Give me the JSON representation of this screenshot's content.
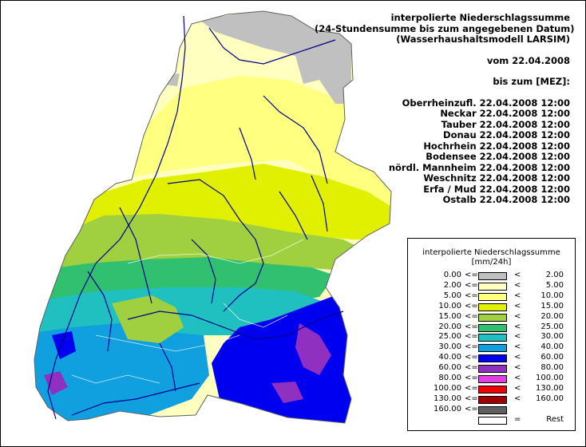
{
  "header": {
    "title_lines": [
      "interpolierte Niederschlagssumme",
      "(24-Stundensumme bis zum angegebenen Datum)",
      "(Wasserhaushaltsmodell LARSIM)"
    ],
    "from_line": "vom 22.04.2008",
    "until_line": "bis zum [MEZ]:",
    "regions": [
      "Oberrheinzufl. 22.04.2008 12:00",
      "Neckar 22.04.2008 12:00",
      "Tauber 22.04.2008 12:00",
      "Donau 22.04.2008 12:00",
      "Hochrhein 22.04.2008 12:00",
      "Bodensee 22.04.2008 12:00",
      "nördl. Mannheim 22.04.2008 12:00",
      "Weschnitz 22.04.2008 12:00",
      "Erfa / Mud 22.04.2008 12:00",
      "Ostalb 22.04.2008 12:00"
    ]
  },
  "legend": {
    "title": "interpolierte Niederschlagssumme",
    "unit": "[mm/24h]",
    "classes": [
      {
        "low": "0.00",
        "op1": "<=",
        "op2": "<",
        "high": "2.00",
        "color": "#c0c0c0"
      },
      {
        "low": "2.00",
        "op1": "<=",
        "op2": "<",
        "high": "5.00",
        "color": "#ffffc0"
      },
      {
        "low": "5.00",
        "op1": "<=",
        "op2": "<",
        "high": "10.00",
        "color": "#ffff80"
      },
      {
        "low": "10.00",
        "op1": "<=",
        "op2": "<",
        "high": "15.00",
        "color": "#e0f000"
      },
      {
        "low": "15.00",
        "op1": "<=",
        "op2": "<",
        "high": "20.00",
        "color": "#a0d040"
      },
      {
        "low": "20.00",
        "op1": "<=",
        "op2": "<",
        "high": "25.00",
        "color": "#30c070"
      },
      {
        "low": "25.00",
        "op1": "<=",
        "op2": "<",
        "high": "30.00",
        "color": "#20c0c0"
      },
      {
        "low": "30.00",
        "op1": "<=",
        "op2": "<",
        "high": "40.00",
        "color": "#10a0e0"
      },
      {
        "low": "40.00",
        "op1": "<=",
        "op2": "<",
        "high": "60.00",
        "color": "#0000f0"
      },
      {
        "low": "60.00",
        "op1": "<=",
        "op2": "<",
        "high": "80.00",
        "color": "#9030c0"
      },
      {
        "low": "80.00",
        "op1": "<=",
        "op2": "<",
        "high": "100.00",
        "color": "#e040e0"
      },
      {
        "low": "100.00",
        "op1": "<=",
        "op2": "<",
        "high": "130.00",
        "color": "#f00000"
      },
      {
        "low": "130.00",
        "op1": "<=",
        "op2": "<",
        "high": "160.00",
        "color": "#a00000"
      },
      {
        "low": "160.00",
        "op1": "<=",
        "op2": "",
        "high": "",
        "color": "#606060"
      },
      {
        "low": "",
        "op1": "",
        "op2": "=",
        "high": "Rest",
        "color": "#ffffff"
      }
    ]
  }
}
